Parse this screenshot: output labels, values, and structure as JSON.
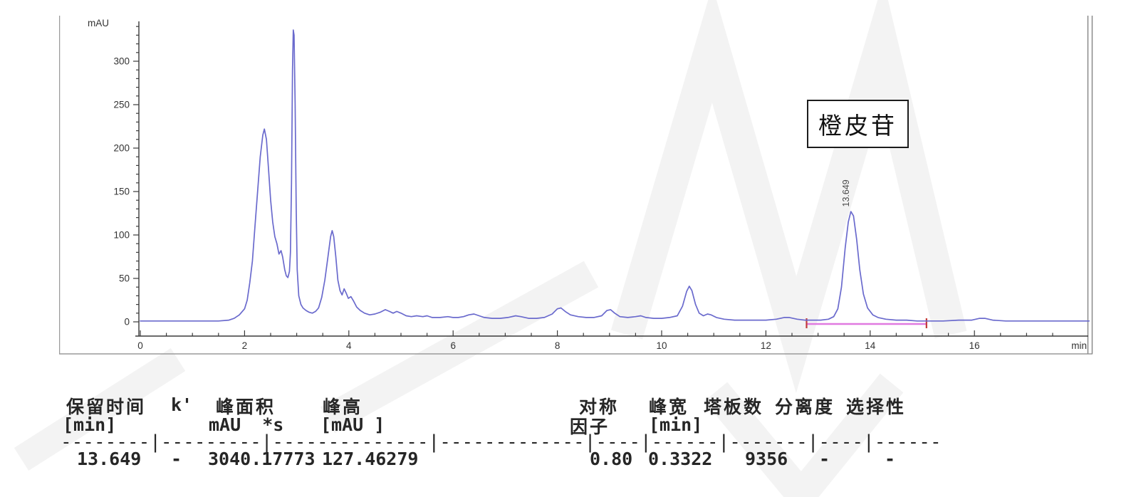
{
  "chart": {
    "y_unit": "mAU",
    "x_unit": "min",
    "y_ticks": [
      0,
      50,
      100,
      150,
      200,
      250,
      300
    ],
    "x_ticks": [
      0,
      2,
      4,
      6,
      8,
      10,
      12,
      14,
      16
    ],
    "peak_time_label": "13.649",
    "annotation_label": "橙皮苷",
    "curve_color": "#6a6acd",
    "baseline_color": "#e07ae0",
    "marker_color": "#c23a3a",
    "axis_color": "#3a3a3a",
    "watermark_color": "#f3f3f3"
  },
  "chart_data": {
    "type": "line",
    "title": "",
    "xlabel": "min",
    "ylabel": "mAU",
    "xlim": [
      0,
      18.2
    ],
    "ylim": [
      -16,
      346
    ],
    "grid": false,
    "x_minor_step": 0.5,
    "y_minor_step": 10,
    "series": [
      {
        "name": "detector-signal",
        "color": "#6a6acd",
        "points": [
          [
            0,
            1
          ],
          [
            0.5,
            1
          ],
          [
            1.0,
            1
          ],
          [
            1.5,
            1
          ],
          [
            1.7,
            2
          ],
          [
            1.8,
            4
          ],
          [
            1.9,
            8
          ],
          [
            2.0,
            15
          ],
          [
            2.05,
            25
          ],
          [
            2.1,
            45
          ],
          [
            2.15,
            70
          ],
          [
            2.2,
            110
          ],
          [
            2.25,
            150
          ],
          [
            2.3,
            190
          ],
          [
            2.35,
            215
          ],
          [
            2.38,
            222
          ],
          [
            2.42,
            210
          ],
          [
            2.46,
            175
          ],
          [
            2.5,
            140
          ],
          [
            2.54,
            115
          ],
          [
            2.58,
            98
          ],
          [
            2.62,
            90
          ],
          [
            2.66,
            78
          ],
          [
            2.7,
            82
          ],
          [
            2.73,
            75
          ],
          [
            2.77,
            60
          ],
          [
            2.8,
            53
          ],
          [
            2.83,
            51
          ],
          [
            2.86,
            58
          ],
          [
            2.88,
            80
          ],
          [
            2.9,
            160
          ],
          [
            2.92,
            290
          ],
          [
            2.935,
            336
          ],
          [
            2.95,
            330
          ],
          [
            2.97,
            250
          ],
          [
            2.99,
            130
          ],
          [
            3.01,
            60
          ],
          [
            3.04,
            30
          ],
          [
            3.08,
            20
          ],
          [
            3.12,
            16
          ],
          [
            3.18,
            13
          ],
          [
            3.24,
            11
          ],
          [
            3.3,
            10
          ],
          [
            3.36,
            12
          ],
          [
            3.42,
            16
          ],
          [
            3.48,
            28
          ],
          [
            3.54,
            48
          ],
          [
            3.6,
            75
          ],
          [
            3.65,
            98
          ],
          [
            3.68,
            105
          ],
          [
            3.71,
            98
          ],
          [
            3.75,
            75
          ],
          [
            3.79,
            48
          ],
          [
            3.83,
            36
          ],
          [
            3.87,
            31
          ],
          [
            3.91,
            38
          ],
          [
            3.95,
            33
          ],
          [
            3.99,
            27
          ],
          [
            4.04,
            29
          ],
          [
            4.09,
            24
          ],
          [
            4.15,
            17
          ],
          [
            4.22,
            13
          ],
          [
            4.3,
            10
          ],
          [
            4.4,
            8
          ],
          [
            4.5,
            9
          ],
          [
            4.6,
            11
          ],
          [
            4.7,
            14
          ],
          [
            4.78,
            12
          ],
          [
            4.85,
            10
          ],
          [
            4.92,
            12
          ],
          [
            5.0,
            10
          ],
          [
            5.1,
            7
          ],
          [
            5.2,
            6
          ],
          [
            5.3,
            7
          ],
          [
            5.42,
            6
          ],
          [
            5.5,
            7
          ],
          [
            5.6,
            5
          ],
          [
            5.75,
            5
          ],
          [
            5.9,
            6
          ],
          [
            6.0,
            5
          ],
          [
            6.1,
            5
          ],
          [
            6.2,
            6
          ],
          [
            6.3,
            8
          ],
          [
            6.4,
            9
          ],
          [
            6.5,
            7
          ],
          [
            6.6,
            5
          ],
          [
            6.75,
            4
          ],
          [
            6.9,
            4
          ],
          [
            7.05,
            5
          ],
          [
            7.2,
            7
          ],
          [
            7.3,
            6
          ],
          [
            7.45,
            4
          ],
          [
            7.6,
            4
          ],
          [
            7.75,
            5
          ],
          [
            7.9,
            9
          ],
          [
            8.0,
            15
          ],
          [
            8.07,
            16
          ],
          [
            8.15,
            12
          ],
          [
            8.25,
            8
          ],
          [
            8.4,
            6
          ],
          [
            8.55,
            5
          ],
          [
            8.7,
            5
          ],
          [
            8.85,
            7
          ],
          [
            8.95,
            13
          ],
          [
            9.02,
            14
          ],
          [
            9.1,
            10
          ],
          [
            9.2,
            6
          ],
          [
            9.35,
            5
          ],
          [
            9.5,
            6
          ],
          [
            9.6,
            7
          ],
          [
            9.7,
            5
          ],
          [
            9.85,
            4
          ],
          [
            10.0,
            4
          ],
          [
            10.15,
            5
          ],
          [
            10.3,
            7
          ],
          [
            10.4,
            18
          ],
          [
            10.48,
            35
          ],
          [
            10.53,
            41
          ],
          [
            10.58,
            36
          ],
          [
            10.65,
            20
          ],
          [
            10.72,
            10
          ],
          [
            10.8,
            7
          ],
          [
            10.88,
            9
          ],
          [
            10.95,
            8
          ],
          [
            11.05,
            5
          ],
          [
            11.2,
            3
          ],
          [
            11.4,
            2
          ],
          [
            11.6,
            2
          ],
          [
            11.8,
            2
          ],
          [
            12.0,
            2
          ],
          [
            12.2,
            3
          ],
          [
            12.35,
            5
          ],
          [
            12.45,
            5
          ],
          [
            12.6,
            3
          ],
          [
            12.75,
            2
          ],
          [
            12.9,
            2
          ],
          [
            13.05,
            2
          ],
          [
            13.2,
            3
          ],
          [
            13.3,
            6
          ],
          [
            13.38,
            15
          ],
          [
            13.45,
            40
          ],
          [
            13.52,
            85
          ],
          [
            13.58,
            115
          ],
          [
            13.63,
            127
          ],
          [
            13.68,
            122
          ],
          [
            13.74,
            95
          ],
          [
            13.8,
            60
          ],
          [
            13.87,
            32
          ],
          [
            13.95,
            16
          ],
          [
            14.05,
            8
          ],
          [
            14.15,
            5
          ],
          [
            14.3,
            3
          ],
          [
            14.5,
            2
          ],
          [
            14.7,
            2
          ],
          [
            14.9,
            1
          ],
          [
            15.1,
            1
          ],
          [
            15.4,
            1
          ],
          [
            15.7,
            2
          ],
          [
            15.95,
            2
          ],
          [
            16.1,
            4
          ],
          [
            16.2,
            4
          ],
          [
            16.35,
            2
          ],
          [
            16.6,
            1
          ],
          [
            16.9,
            1
          ],
          [
            17.2,
            1
          ],
          [
            17.6,
            1
          ],
          [
            18.0,
            1
          ],
          [
            18.2,
            1
          ]
        ]
      }
    ],
    "integration_baseline": {
      "from_min": 12.78,
      "to_min": 15.08,
      "color": "#e07ae0"
    },
    "labeled_peaks": [
      {
        "rt_min": 13.649,
        "height_mAU": 127.46279,
        "label": "13.649",
        "annotation": "橙皮苷"
      }
    ]
  },
  "report": {
    "header_row1": [
      "保留时间",
      "k'",
      "峰面积",
      "峰高",
      "对称",
      "峰宽",
      "塔板数",
      "分离度",
      "选择性"
    ],
    "header_row2": [
      "[min]",
      "mAU  *s",
      "[mAU ]",
      "因子",
      "[min]"
    ],
    "separator": "--------|---------|--------------|-------------|----|------|-------|----|------",
    "rows": [
      [
        "13.649",
        "-",
        "3040.17773",
        "127.46279",
        "0.80",
        "0.3322",
        "9356",
        "-",
        "-"
      ]
    ]
  }
}
